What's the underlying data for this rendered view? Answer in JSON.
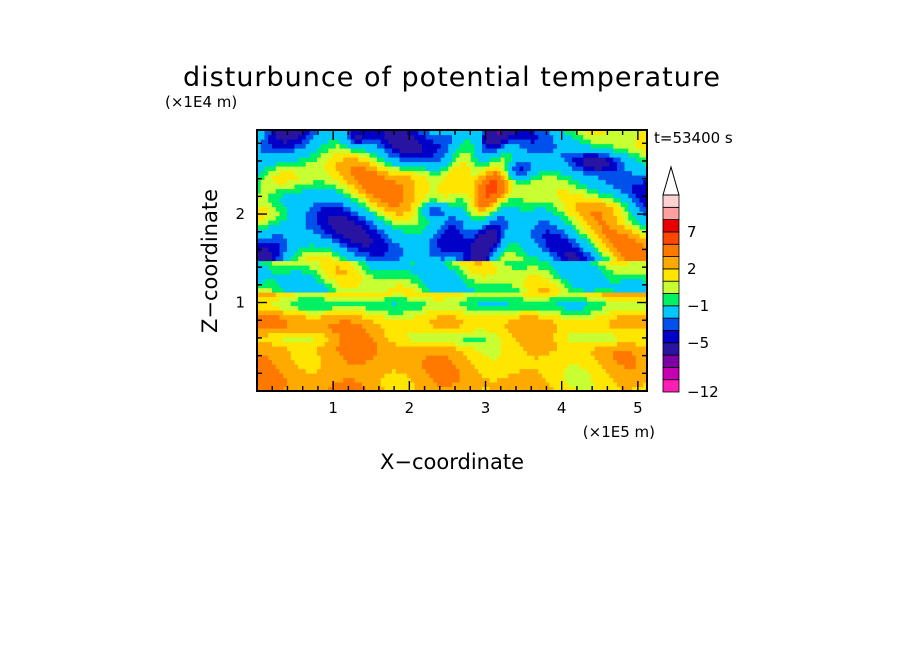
{
  "chart_data": {
    "type": "heatmap",
    "title": "disturbunce of potential temperature",
    "xlabel": "X−coordinate",
    "ylabel": "Z−coordinate",
    "x_unit": "(×1E5 m)",
    "y_unit": "(×1E4 m)",
    "time_label": "t=53400 s",
    "xlim": [
      0,
      5.12
    ],
    "ylim": [
      0,
      2.95
    ],
    "x_ticks": [
      1,
      2,
      3,
      4,
      5
    ],
    "x_tick_labels": [
      "1",
      "2",
      "3",
      "4",
      "5"
    ],
    "y_ticks": [
      1,
      2
    ],
    "y_tick_labels": [
      "1",
      "2"
    ],
    "grid": false,
    "colorbar": {
      "levels": [
        -12,
        -11,
        -9,
        -7,
        -5,
        -4,
        -3,
        -1,
        0,
        1,
        2,
        3,
        5,
        7,
        8,
        9,
        11
      ],
      "colors": [
        "#ff1eb4",
        "#c800b4",
        "#7d00a5",
        "#2814a0",
        "#0000c8",
        "#0050eb",
        "#00c8ff",
        "#00f064",
        "#c8ff32",
        "#ffe600",
        "#ffaa00",
        "#ff7800",
        "#ff4600",
        "#eb0000",
        "#ffa0a0",
        "#ffd2d2"
      ],
      "extend": "max",
      "tick_values": [
        -12,
        -5,
        -1,
        2,
        7
      ],
      "tick_labels": [
        "−12",
        "−5",
        "−1",
        "2",
        "7"
      ],
      "placement": "right"
    }
  }
}
